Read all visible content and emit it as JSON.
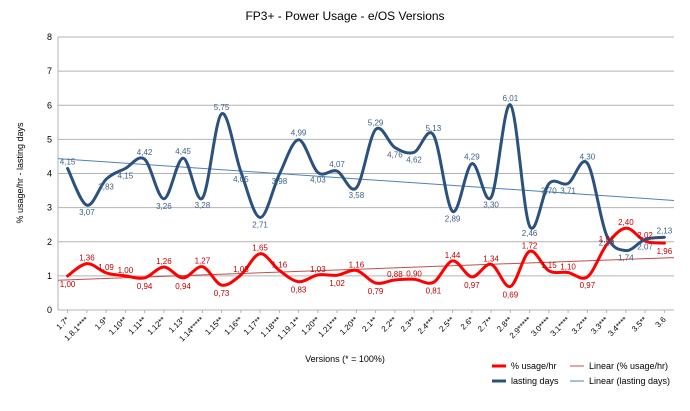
{
  "chart_data": {
    "type": "line",
    "title": "FP3+ - Power Usage - e/OS Versions",
    "xlabel": "Versions (* = 100%)",
    "ylabel": "% usage/hr - lasting days",
    "ylim": [
      0,
      8
    ],
    "yticks": [
      0,
      1,
      2,
      3,
      4,
      5,
      6,
      7,
      8
    ],
    "grid": true,
    "legend_position": "bottom-right",
    "categories": [
      "1.7*",
      "1.8.1****",
      "1.9*",
      "1.10**",
      "1.11**",
      "1.12**",
      "1.13*",
      "1.14*****",
      "1.15**",
      "1.16**",
      "1.17**",
      "1.18***",
      "1.19.1**",
      "1.20**",
      "1.21***",
      "1.20**",
      "2.1**",
      "2.2**",
      "2.3**",
      "2.4***",
      "2.5**",
      "2.6*",
      "2.7**",
      "2.8**",
      "2.9*****",
      "3.0****",
      "3.1****",
      "3.2***",
      "3.3***",
      "3.4****",
      "3.5**",
      "3.6"
    ],
    "series": [
      {
        "name": "% usage/hr",
        "color": "#ff0000",
        "values": [
          1.0,
          1.36,
          1.09,
          1.0,
          0.94,
          1.26,
          0.94,
          1.27,
          0.73,
          1.03,
          1.65,
          1.16,
          0.83,
          1.03,
          1.02,
          1.16,
          0.79,
          0.88,
          0.9,
          0.81,
          1.44,
          0.97,
          1.34,
          0.69,
          1.72,
          1.15,
          1.1,
          0.97,
          1.91,
          2.4,
          2.02,
          1.96
        ],
        "labels": [
          "1,00",
          "1,36",
          "1,09",
          "1,00",
          "0,94",
          "1,26",
          "0,94",
          "1,27",
          "0,73",
          "1,03",
          "1,65",
          "1,16",
          "0,83",
          "1,03",
          "1,02",
          "1,16",
          "0,79",
          "0,88",
          "0,90",
          "0,81",
          "1,44",
          "0,97",
          "1,34",
          "0,69",
          "1,72",
          "1,15",
          "1,10",
          "0,97",
          "1,91",
          "2,40",
          "2,02",
          "1,96"
        ]
      },
      {
        "name": "lasting days",
        "color": "#2b527f",
        "values": [
          4.15,
          3.07,
          3.83,
          4.15,
          4.42,
          3.26,
          4.45,
          3.28,
          5.75,
          4.05,
          2.71,
          3.98,
          4.99,
          4.03,
          4.07,
          3.58,
          5.29,
          4.76,
          4.62,
          5.13,
          2.89,
          4.29,
          3.3,
          6.01,
          2.46,
          3.7,
          3.71,
          4.3,
          2.19,
          1.74,
          2.07,
          2.13
        ],
        "labels": [
          "4,15",
          "3,07",
          "3,83",
          "4,15",
          "4,42",
          "3,26",
          "4,45",
          "3,28",
          "5,75",
          "4,05",
          "2,71",
          "3,98",
          "4,99",
          "4,03",
          "4,07",
          "3,58",
          "5,29",
          "4,76",
          "4,62",
          "5,13",
          "2,89",
          "4,29",
          "3,30",
          "6,01",
          "2,46",
          "3,70",
          "3,71",
          "4,30",
          "2,19",
          "1,74",
          "2,07",
          "2,13"
        ]
      }
    ],
    "trendlines": [
      {
        "name": "Linear (% usage/hr)",
        "of": "% usage/hr",
        "color": "#c0504d"
      },
      {
        "name": "Linear (lasting days)",
        "of": "lasting days",
        "color": "#4f81bd"
      }
    ]
  }
}
